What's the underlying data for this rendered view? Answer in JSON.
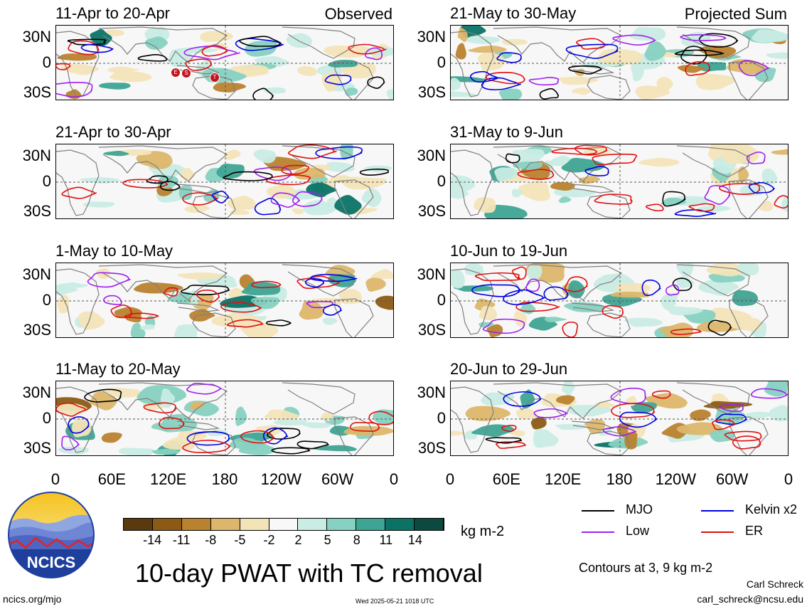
{
  "panels": {
    "left": [
      {
        "title": "11-Apr to 20-Apr",
        "tag": "Observed"
      },
      {
        "title": "21-Apr to 30-Apr",
        "tag": ""
      },
      {
        "title": "1-May to 10-May",
        "tag": ""
      },
      {
        "title": "11-May to 20-May",
        "tag": ""
      }
    ],
    "right": [
      {
        "title": "21-May to 30-May",
        "tag": "Projected Sum"
      },
      {
        "title": "31-May to 9-Jun",
        "tag": ""
      },
      {
        "title": "10-Jun to 19-Jun",
        "tag": ""
      },
      {
        "title": "20-Jun to 29-Jun",
        "tag": ""
      }
    ]
  },
  "tc_markers": [
    "E",
    "S",
    "T"
  ],
  "y_ticks": [
    "30N",
    "0",
    "30S"
  ],
  "x_ticks": [
    "0",
    "60E",
    "120E",
    "180",
    "120W",
    "60W",
    "0"
  ],
  "colorbar": {
    "labels": [
      "-14",
      "-11",
      "-8",
      "-5",
      "-2",
      "2",
      "5",
      "8",
      "11",
      "14"
    ],
    "colors": [
      "#5a3a0c",
      "#8c5a14",
      "#b9822e",
      "#dcb66a",
      "#f3e4b8",
      "#f8f8f8",
      "#c9ece4",
      "#86d1c1",
      "#3ea493",
      "#0a7366",
      "#0c4a40"
    ],
    "units": "kg m-2"
  },
  "contour_key": [
    {
      "label": "MJO",
      "color": "#000000"
    },
    {
      "label": "Kelvin x2",
      "color": "#0000e0"
    },
    {
      "label": "Low",
      "color": "#a020f0"
    },
    {
      "label": "ER",
      "color": "#e01010"
    }
  ],
  "contour_note": "Contours at 3, 9 kg m-2",
  "main_title": "10-day PWAT with TC removal",
  "logo_text": "NCICS",
  "footer": {
    "url": "ncics.org/mjo",
    "timestamp": "Wed 2025-05-21 1018 UTC",
    "author": "Carl Schreck",
    "email": "carl_schreck@ncsu.edu"
  }
}
